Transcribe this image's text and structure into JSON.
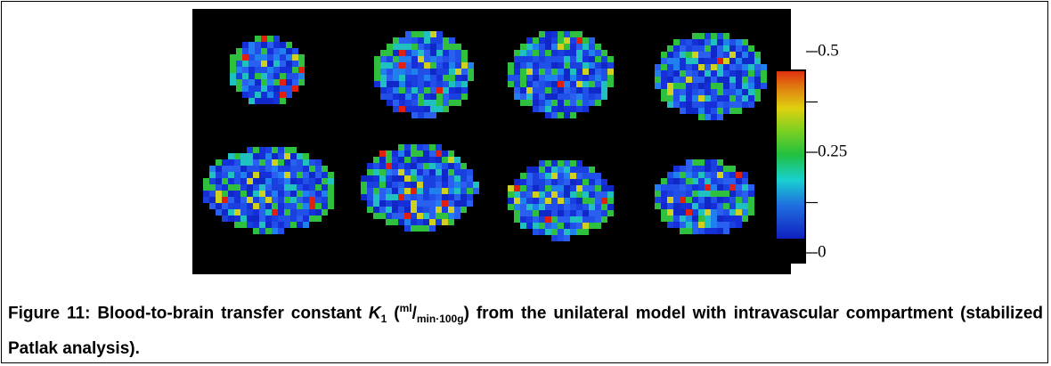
{
  "figure": {
    "colorbar": {
      "lim": [
        0,
        0.5
      ],
      "ticks": [
        0.5,
        0.25,
        0
      ],
      "minor_ticks": [
        0.375,
        0.125
      ]
    },
    "caption": {
      "lead": "Figure 11: Blood-to-brain transfer constant ",
      "symbol": "K",
      "symbol_sub": "1",
      "open": " (",
      "unit_num": "ml",
      "slash": "/",
      "unit_den": "min·100g",
      "rest": ") from the unilateral model with intravascular compartment (stabilized Patlak analysis)."
    }
  }
}
